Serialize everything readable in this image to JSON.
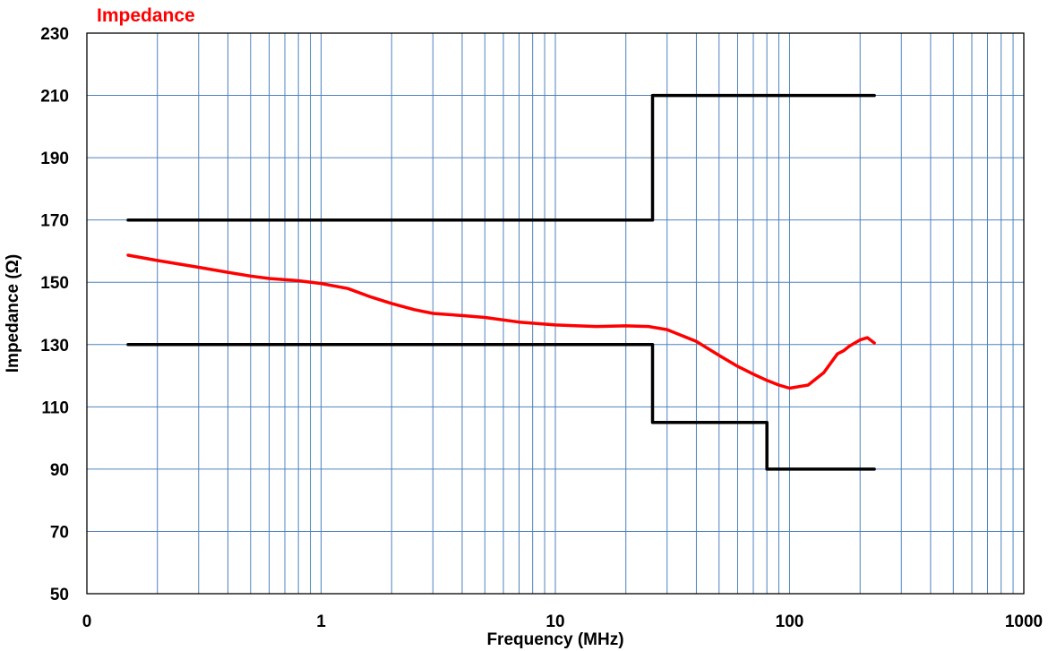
{
  "chart_data": {
    "type": "line",
    "title": "Impedance",
    "xlabel": "Frequency (MHz)",
    "ylabel": "Impedance (Ω)",
    "x_scale": "log",
    "xlim": [
      0.1,
      1000
    ],
    "ylim": [
      50,
      230
    ],
    "x_tick_labels": [
      "0",
      "1",
      "10",
      "100",
      "1000"
    ],
    "x_tick_values": [
      0.1,
      1,
      10,
      100,
      1000
    ],
    "y_ticks": [
      50,
      70,
      90,
      110,
      130,
      150,
      170,
      190,
      210,
      230
    ],
    "grid": true,
    "colors": {
      "title": "#ff0000",
      "measured": "#ff0000",
      "limits": "#000000",
      "grid": "#4f81bd"
    },
    "series": [
      {
        "role": "measured",
        "x": [
          0.15,
          0.2,
          0.3,
          0.4,
          0.5,
          0.6,
          0.8,
          1,
          1.3,
          1.6,
          2,
          2.5,
          3,
          4,
          5,
          7,
          10,
          15,
          20,
          25,
          30,
          40,
          50,
          60,
          70,
          80,
          90,
          100,
          120,
          140,
          160,
          170,
          180,
          200,
          215,
          230
        ],
        "y": [
          158.7,
          157,
          154.8,
          153.2,
          152,
          151.2,
          150.5,
          149.6,
          148,
          145.5,
          143.2,
          141.2,
          140,
          139.3,
          138.7,
          137.2,
          136.3,
          135.8,
          136,
          135.8,
          134.8,
          131,
          126.5,
          123,
          120.5,
          118.5,
          117,
          116,
          117,
          121,
          127,
          128,
          129.5,
          131.5,
          132.2,
          130.5
        ]
      },
      {
        "role": "upper-limit",
        "x": [
          0.15,
          26,
          26,
          230
        ],
        "y": [
          170,
          170,
          210,
          210
        ]
      },
      {
        "role": "lower-limit",
        "x": [
          0.15,
          26,
          26,
          80,
          80,
          230
        ],
        "y": [
          130,
          130,
          105,
          105,
          90,
          90
        ]
      }
    ]
  }
}
